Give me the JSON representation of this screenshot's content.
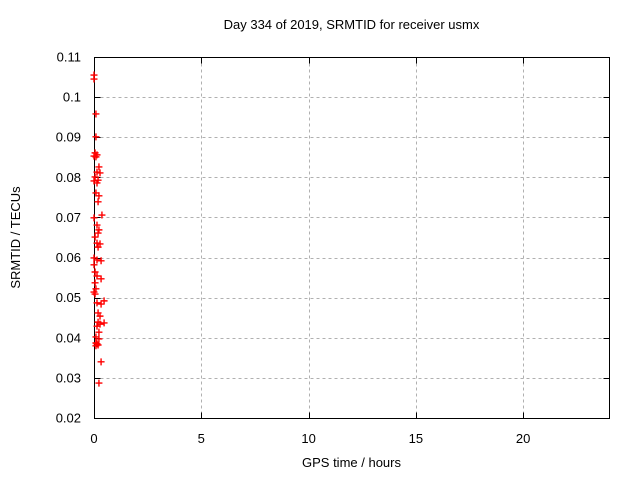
{
  "chart_data": {
    "type": "scatter",
    "title": "Day 334 of 2019, SRMTID for receiver usmx",
    "xlabel": "GPS time / hours",
    "ylabel": "SRMTID / TECUs",
    "xlim": [
      0,
      24
    ],
    "ylim": [
      0.02,
      0.11
    ],
    "x_ticks": [
      {
        "value": 0,
        "label": "0"
      },
      {
        "value": 5,
        "label": "5"
      },
      {
        "value": 10,
        "label": "10"
      },
      {
        "value": 15,
        "label": "15"
      },
      {
        "value": 20,
        "label": "20"
      }
    ],
    "y_ticks": [
      {
        "value": 0.02,
        "label": "0.02"
      },
      {
        "value": 0.03,
        "label": "0.03"
      },
      {
        "value": 0.04,
        "label": "0.04"
      },
      {
        "value": 0.05,
        "label": "0.05"
      },
      {
        "value": 0.06,
        "label": "0.06"
      },
      {
        "value": 0.07,
        "label": "0.07"
      },
      {
        "value": 0.08,
        "label": "0.08"
      },
      {
        "value": 0.09,
        "label": "0.09"
      },
      {
        "value": 0.1,
        "label": "0.1"
      },
      {
        "value": 0.11,
        "label": "0.11"
      }
    ],
    "grid": true,
    "grid_style": "dotted",
    "grid_color": "#b0b0b0",
    "border_color": "#000000",
    "legend": "none",
    "series": [
      {
        "name": "SRMTID",
        "marker": "plus",
        "color": "#ff0000",
        "points": [
          [
            0.0,
            0.1055
          ],
          [
            0.0,
            0.1045
          ],
          [
            0.09,
            0.0958
          ],
          [
            0.09,
            0.0901
          ],
          [
            0.05,
            0.0861
          ],
          [
            0.14,
            0.0856
          ],
          [
            0.0,
            0.0853
          ],
          [
            0.09,
            0.0851
          ],
          [
            0.23,
            0.0826
          ],
          [
            0.14,
            0.0813
          ],
          [
            0.28,
            0.0811
          ],
          [
            0.05,
            0.0801
          ],
          [
            0.19,
            0.0793
          ],
          [
            0.0,
            0.0791
          ],
          [
            0.14,
            0.0786
          ],
          [
            0.09,
            0.0761
          ],
          [
            0.23,
            0.0754
          ],
          [
            0.19,
            0.0739
          ],
          [
            0.37,
            0.0706
          ],
          [
            0.0,
            0.0699
          ],
          [
            0.14,
            0.0681
          ],
          [
            0.23,
            0.0669
          ],
          [
            0.19,
            0.0661
          ],
          [
            0.05,
            0.0651
          ],
          [
            0.14,
            0.0636
          ],
          [
            0.28,
            0.0634
          ],
          [
            0.19,
            0.0626
          ],
          [
            0.0,
            0.0599
          ],
          [
            0.14,
            0.0594
          ],
          [
            0.33,
            0.0592
          ],
          [
            0.0,
            0.0582
          ],
          [
            0.05,
            0.0564
          ],
          [
            0.14,
            0.0554
          ],
          [
            0.33,
            0.0547
          ],
          [
            0.05,
            0.0537
          ],
          [
            0.09,
            0.0522
          ],
          [
            0.0,
            0.0514
          ],
          [
            0.05,
            0.0509
          ],
          [
            0.47,
            0.0492
          ],
          [
            0.14,
            0.0487
          ],
          [
            0.33,
            0.0484
          ],
          [
            0.19,
            0.0462
          ],
          [
            0.28,
            0.0454
          ],
          [
            0.47,
            0.0437
          ],
          [
            0.19,
            0.0439
          ],
          [
            0.28,
            0.0434
          ],
          [
            0.14,
            0.0429
          ],
          [
            0.23,
            0.0414
          ],
          [
            0.09,
            0.0402
          ],
          [
            0.23,
            0.0397
          ],
          [
            0.09,
            0.0387
          ],
          [
            0.14,
            0.0385
          ],
          [
            0.19,
            0.0382
          ],
          [
            0.09,
            0.038
          ],
          [
            0.33,
            0.034
          ],
          [
            0.23,
            0.0287
          ]
        ]
      }
    ]
  }
}
